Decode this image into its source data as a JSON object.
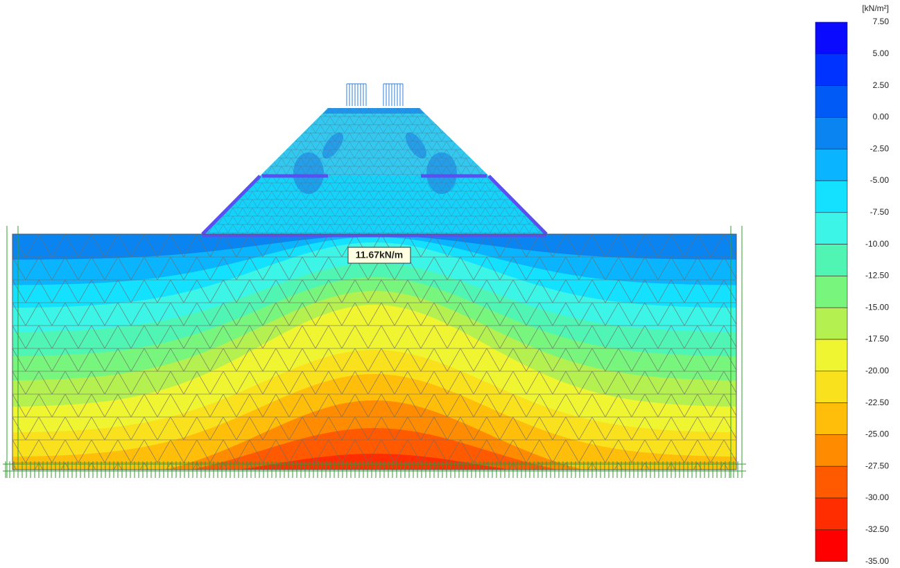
{
  "plot": {
    "annotation": "11.67kN/m"
  },
  "legend": {
    "unit": "[kN/m²]",
    "labels": [
      "7.50",
      "5.00",
      "2.50",
      "0.00",
      "-2.50",
      "-5.00",
      "-7.50",
      "-10.00",
      "-12.50",
      "-15.00",
      "-17.50",
      "-20.00",
      "-22.50",
      "-25.00",
      "-27.50",
      "-30.00",
      "-32.50",
      "-35.00"
    ],
    "colors": [
      "#0a0aff",
      "#0033ff",
      "#005af5",
      "#0a84f0",
      "#0ab4ff",
      "#14e1ff",
      "#3cf5e6",
      "#50f5b4",
      "#78f57d",
      "#b4f050",
      "#f0f532",
      "#fae11e",
      "#ffbe0a",
      "#ff8c00",
      "#ff5a00",
      "#ff2d00",
      "#ff0000"
    ]
  }
}
